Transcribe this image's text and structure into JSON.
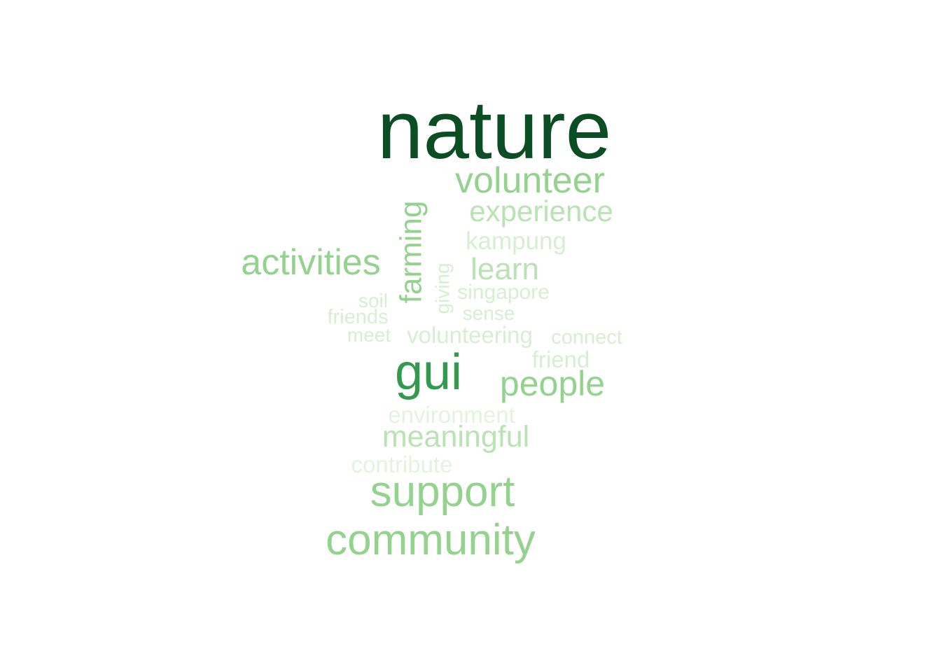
{
  "wordcloud": {
    "words": [
      {
        "text": "nature",
        "color": "#0b4e24"
      },
      {
        "text": "volunteer",
        "color": "#94d38e"
      },
      {
        "text": "experience",
        "color": "#b9e3b2"
      },
      {
        "text": "farming",
        "color": "#94d38e"
      },
      {
        "text": "kampung",
        "color": "#d6efd1"
      },
      {
        "text": "activities",
        "color": "#94d38e"
      },
      {
        "text": "learn",
        "color": "#b9e3b2"
      },
      {
        "text": "giving",
        "color": "#d6efd1"
      },
      {
        "text": "singapore",
        "color": "#d6efd1"
      },
      {
        "text": "soil",
        "color": "#d6efd1"
      },
      {
        "text": "sense",
        "color": "#d6efd1"
      },
      {
        "text": "friends",
        "color": "#d6efd1"
      },
      {
        "text": "meet",
        "color": "#d6efd1"
      },
      {
        "text": "volunteering",
        "color": "#d6efd1"
      },
      {
        "text": "connect",
        "color": "#d6efd1"
      },
      {
        "text": "friend",
        "color": "#d6efd1"
      },
      {
        "text": "gui",
        "color": "#33994d"
      },
      {
        "text": "people",
        "color": "#94d38e"
      },
      {
        "text": "environment",
        "color": "#e2f4de"
      },
      {
        "text": "meaningful",
        "color": "#b9e3b2"
      },
      {
        "text": "contribute",
        "color": "#e2f4de"
      },
      {
        "text": "support",
        "color": "#94d38e"
      },
      {
        "text": "community",
        "color": "#94d38e"
      }
    ]
  }
}
